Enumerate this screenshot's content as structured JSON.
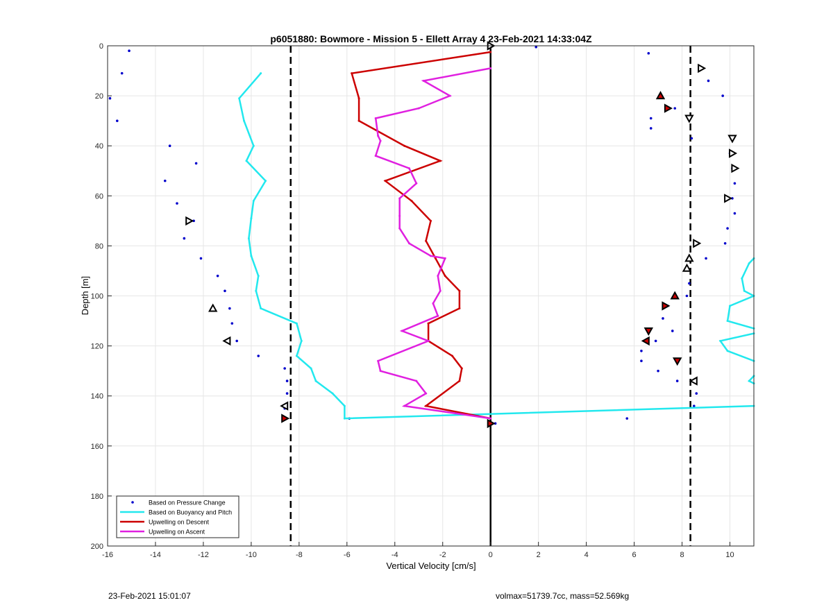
{
  "footer": {
    "timestamp": "23-Feb-2021 15:01:07",
    "info": "volmax=51739.7cc, mass=52.569kg"
  },
  "chart_data": {
    "type": "line",
    "title": "p6051880: Bowmore - Mission 5 - Ellett Array 4 23-Feb-2021 14:33:04Z",
    "xlabel": "Vertical Velocity [cm/s]",
    "ylabel": "Depth [m]",
    "xlim": [
      -16,
      11
    ],
    "ylim": [
      200,
      0
    ],
    "y_reversed": true,
    "grid": true,
    "xticks": [
      -16,
      -14,
      -12,
      -10,
      -8,
      -6,
      -4,
      -2,
      0,
      2,
      4,
      6,
      8,
      10
    ],
    "yticks": [
      0,
      20,
      40,
      60,
      80,
      100,
      120,
      140,
      160,
      180,
      200
    ],
    "legend_position": "bottom-left",
    "legend": [
      {
        "label": "Based on Pressure Change",
        "color": "#0000cc",
        "style": "dot"
      },
      {
        "label": "Based on Buoyancy and Pitch",
        "color": "#22e8ee",
        "style": "line"
      },
      {
        "label": "Upwelling on Descent",
        "color": "#cc0000",
        "style": "line"
      },
      {
        "label": "Upwelling on Ascent",
        "color": "#e020e0",
        "style": "line"
      }
    ],
    "vlines": [
      {
        "x": -8.35,
        "style": "dashed",
        "color": "#000000"
      },
      {
        "x": 0,
        "style": "solid",
        "color": "#000000"
      },
      {
        "x": 8.35,
        "style": "dashed",
        "color": "#000000"
      }
    ],
    "series": [
      {
        "style": "dot",
        "color": "#0000cc",
        "points": [
          [
            -15.1,
            2
          ],
          [
            -15.4,
            11
          ],
          [
            -15.9,
            21
          ],
          [
            -15.6,
            30
          ],
          [
            -13.4,
            40
          ],
          [
            -12.3,
            47
          ],
          [
            -13.6,
            54
          ],
          [
            -13.1,
            63
          ],
          [
            -12.4,
            70
          ],
          [
            -12.8,
            77
          ],
          [
            -12.1,
            85
          ],
          [
            -11.4,
            92
          ],
          [
            -11.1,
            98
          ],
          [
            -10.9,
            105
          ],
          [
            -10.8,
            111
          ],
          [
            -10.6,
            118
          ],
          [
            -9.7,
            124
          ],
          [
            -8.6,
            129
          ],
          [
            -8.5,
            134
          ],
          [
            -8.5,
            139
          ],
          [
            -8.6,
            145
          ],
          [
            -8.6,
            149
          ],
          [
            -5.9,
            149
          ],
          [
            0.2,
            151
          ],
          [
            1.9,
            0.5
          ],
          [
            6.6,
            3
          ],
          [
            9.1,
            14
          ],
          [
            9.7,
            20
          ],
          [
            7.7,
            25
          ],
          [
            6.7,
            29
          ],
          [
            6.7,
            33
          ],
          [
            8.4,
            37
          ],
          [
            10.0,
            43
          ],
          [
            10.1,
            49
          ],
          [
            10.2,
            55
          ],
          [
            10.1,
            61
          ],
          [
            10.2,
            67
          ],
          [
            9.9,
            73
          ],
          [
            9.8,
            79
          ],
          [
            9.0,
            85
          ],
          [
            8.3,
            95
          ],
          [
            8.2,
            100
          ],
          [
            7.4,
            104
          ],
          [
            7.2,
            109
          ],
          [
            7.6,
            114
          ],
          [
            6.9,
            118
          ],
          [
            6.3,
            122
          ],
          [
            6.3,
            126
          ],
          [
            7.0,
            130
          ],
          [
            7.8,
            134
          ],
          [
            8.6,
            139
          ],
          [
            8.5,
            144
          ],
          [
            5.7,
            149
          ]
        ]
      },
      {
        "name": "Based on Buoyancy and Pitch",
        "color": "#22e8ee",
        "points": [
          [
            -9.6,
            11
          ],
          [
            -10.5,
            21
          ],
          [
            -10.3,
            30
          ],
          [
            -9.9,
            40
          ],
          [
            -10.2,
            46
          ],
          [
            -9.4,
            54
          ],
          [
            -9.9,
            62
          ],
          [
            -10.0,
            69
          ],
          [
            -10.1,
            77
          ],
          [
            -10.0,
            84
          ],
          [
            -9.7,
            92
          ],
          [
            -9.8,
            98
          ],
          [
            -9.6,
            105
          ],
          [
            -8.1,
            111
          ],
          [
            -7.9,
            118
          ],
          [
            -8.1,
            124
          ],
          [
            -7.5,
            129
          ],
          [
            -7.3,
            134
          ],
          [
            -6.6,
            139
          ],
          [
            -6.1,
            144
          ],
          [
            -6.1,
            149
          ],
          [
            11.0,
            144
          ]
        ]
      },
      {
        "name": "Based on Buoyancy and Pitch (right segment)",
        "color": "#22e8ee",
        "points": [
          [
            11.0,
            85
          ],
          [
            10.8,
            87
          ],
          [
            10.5,
            93
          ],
          [
            10.6,
            98
          ],
          [
            11.0,
            100
          ],
          [
            10.0,
            104
          ],
          [
            9.9,
            110
          ],
          [
            11.0,
            113
          ]
        ]
      },
      {
        "name": "Based on Buoyancy and Pitch (right segment 2)",
        "color": "#22e8ee",
        "points": [
          [
            11.0,
            115
          ],
          [
            9.6,
            118
          ],
          [
            9.9,
            122
          ],
          [
            11.0,
            126
          ]
        ]
      },
      {
        "name": "Based on Buoyancy and Pitch (right segment 3)",
        "color": "#22e8ee",
        "points": [
          [
            11.0,
            132
          ],
          [
            10.8,
            134
          ],
          [
            11.0,
            135
          ]
        ]
      },
      {
        "name": "Upwelling on Descent",
        "color": "#cc0000",
        "points": [
          [
            0.0,
            2.5
          ],
          [
            -5.8,
            11
          ],
          [
            -5.5,
            21
          ],
          [
            -5.5,
            30
          ],
          [
            -3.6,
            40
          ],
          [
            -2.1,
            46
          ],
          [
            -4.4,
            54
          ],
          [
            -3.3,
            62
          ],
          [
            -2.5,
            70
          ],
          [
            -2.7,
            78
          ],
          [
            -2.3,
            85
          ],
          [
            -1.9,
            92
          ],
          [
            -1.3,
            98
          ],
          [
            -1.3,
            105
          ],
          [
            -2.6,
            111
          ],
          [
            -2.6,
            118
          ],
          [
            -1.6,
            124
          ],
          [
            -1.2,
            129
          ],
          [
            -1.3,
            134
          ],
          [
            -2.7,
            144
          ],
          [
            0.0,
            149
          ]
        ]
      },
      {
        "name": "Upwelling on Ascent",
        "color": "#e020e0",
        "points": [
          [
            0.0,
            9
          ],
          [
            -2.8,
            14
          ],
          [
            -1.7,
            20
          ],
          [
            -3.0,
            25
          ],
          [
            -4.8,
            29
          ],
          [
            -4.7,
            36
          ],
          [
            -4.6,
            38
          ],
          [
            -4.8,
            44
          ],
          [
            -3.4,
            49
          ],
          [
            -3.1,
            55
          ],
          [
            -3.8,
            61
          ],
          [
            -3.8,
            68
          ],
          [
            -3.8,
            73
          ],
          [
            -3.4,
            79
          ],
          [
            -2.5,
            84
          ],
          [
            -1.9,
            85
          ],
          [
            -2.2,
            92
          ],
          [
            -2.1,
            98
          ],
          [
            -2.4,
            103
          ],
          [
            -2.2,
            108
          ],
          [
            -3.7,
            114
          ],
          [
            -2.6,
            118
          ],
          [
            -4.7,
            126
          ],
          [
            -4.6,
            130
          ],
          [
            -3.1,
            134
          ],
          [
            -2.7,
            139
          ],
          [
            -3.6,
            144
          ],
          [
            0.0,
            149
          ]
        ]
      }
    ],
    "markers": [
      {
        "x": 0.0,
        "y": 0,
        "shape": "right",
        "fill": "none"
      },
      {
        "x": 8.8,
        "y": 9,
        "shape": "right",
        "fill": "none"
      },
      {
        "x": 7.1,
        "y": 20,
        "shape": "up",
        "fill": "red"
      },
      {
        "x": 7.4,
        "y": 25,
        "shape": "right",
        "fill": "red"
      },
      {
        "x": 8.3,
        "y": 29,
        "shape": "down",
        "fill": "none"
      },
      {
        "x": 10.1,
        "y": 37,
        "shape": "down",
        "fill": "none"
      },
      {
        "x": 10.1,
        "y": 43,
        "shape": "right",
        "fill": "none"
      },
      {
        "x": 10.2,
        "y": 49,
        "shape": "right",
        "fill": "none"
      },
      {
        "x": 9.9,
        "y": 61,
        "shape": "right",
        "fill": "none"
      },
      {
        "x": -12.6,
        "y": 70,
        "shape": "right",
        "fill": "none"
      },
      {
        "x": 8.6,
        "y": 79,
        "shape": "right",
        "fill": "none"
      },
      {
        "x": 8.3,
        "y": 85,
        "shape": "up",
        "fill": "none"
      },
      {
        "x": 8.2,
        "y": 89,
        "shape": "up",
        "fill": "none"
      },
      {
        "x": 7.7,
        "y": 100,
        "shape": "up",
        "fill": "red"
      },
      {
        "x": 7.3,
        "y": 104,
        "shape": "right",
        "fill": "red"
      },
      {
        "x": -11.6,
        "y": 105,
        "shape": "up",
        "fill": "none"
      },
      {
        "x": 6.6,
        "y": 114,
        "shape": "down",
        "fill": "red"
      },
      {
        "x": 6.5,
        "y": 118,
        "shape": "left",
        "fill": "red"
      },
      {
        "x": -11.0,
        "y": 118,
        "shape": "left",
        "fill": "none"
      },
      {
        "x": 7.8,
        "y": 126,
        "shape": "down",
        "fill": "red"
      },
      {
        "x": 8.5,
        "y": 134,
        "shape": "left",
        "fill": "none"
      },
      {
        "x": -8.6,
        "y": 144,
        "shape": "left",
        "fill": "none"
      },
      {
        "x": -8.6,
        "y": 149,
        "shape": "right",
        "fill": "red"
      },
      {
        "x": 0.0,
        "y": 151,
        "shape": "right",
        "fill": "red"
      }
    ]
  }
}
